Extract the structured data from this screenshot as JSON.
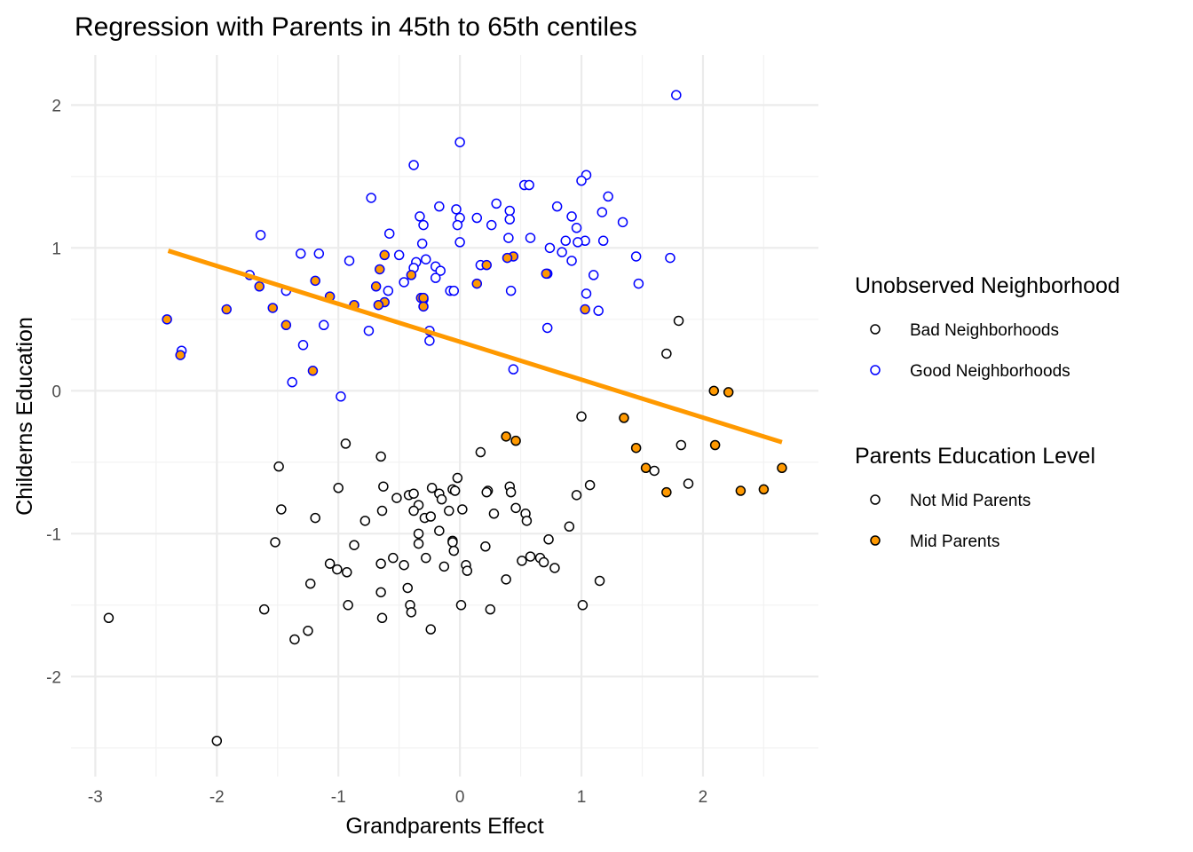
{
  "chart_data": {
    "type": "scatter",
    "title": "Regression with Parents in 45th to 65th centiles",
    "xlabel": "Grandparents Effect",
    "ylabel": "Childerns Education",
    "xlim": [
      -3.2,
      2.95
    ],
    "ylim": [
      -2.7,
      2.35
    ],
    "x_ticks": [
      -3,
      -2,
      -1,
      0,
      1,
      2
    ],
    "x_tick_labels": [
      "-3",
      "-2",
      "-1",
      "0",
      "1",
      "2"
    ],
    "y_ticks": [
      -2,
      -1,
      0,
      1,
      2
    ],
    "y_tick_labels": [
      "-2",
      "-1",
      "0",
      "1",
      "2"
    ],
    "grid": true,
    "legend_position": "right",
    "colors": {
      "bad_neighborhoods": "#000000",
      "good_neighborhoods": "#0000ff",
      "mid_parents_fill": "#ff9900",
      "not_mid_fill": "#ffffff",
      "regression_line": "#ff9900",
      "grid_major": "#ebebeb",
      "grid_minor": "#f2f2f2"
    },
    "legends": [
      {
        "title": "Unobserved Neighborhood",
        "entries": [
          {
            "label": "Bad Neighborhoods",
            "stroke": "#000000",
            "fill": "#ffffff"
          },
          {
            "label": "Good Neighborhoods",
            "stroke": "#0000ff",
            "fill": "#ffffff"
          }
        ]
      },
      {
        "title": "Parents Education Level",
        "entries": [
          {
            "label": "Not Mid Parents",
            "stroke": "#000000",
            "fill": "#ffffff"
          },
          {
            "label": "Mid Parents",
            "stroke": "#000000",
            "fill": "#ff9900"
          }
        ]
      }
    ],
    "regression_line": {
      "x": [
        -2.4,
        2.65
      ],
      "y": [
        0.98,
        -0.36
      ]
    },
    "series": [
      {
        "name": "Good Neighborhoods / Not Mid Parents",
        "neighborhood": "good",
        "mid": false,
        "points": [
          [
            1.78,
            2.07
          ],
          [
            0.0,
            1.74
          ],
          [
            -0.38,
            1.58
          ],
          [
            1.04,
            1.51
          ],
          [
            -0.73,
            1.35
          ],
          [
            1.22,
            1.36
          ],
          [
            0.3,
            1.31
          ],
          [
            0.53,
            1.44
          ],
          [
            0.57,
            1.44
          ],
          [
            1.0,
            1.47
          ],
          [
            -0.17,
            1.29
          ],
          [
            -0.03,
            1.27
          ],
          [
            0.41,
            1.26
          ],
          [
            0.8,
            1.29
          ],
          [
            1.17,
            1.25
          ],
          [
            0.92,
            1.22
          ],
          [
            0.14,
            1.21
          ],
          [
            -0.33,
            1.22
          ],
          [
            0.0,
            1.21
          ],
          [
            0.41,
            1.2
          ],
          [
            1.34,
            1.18
          ],
          [
            0.26,
            1.16
          ],
          [
            -0.02,
            1.16
          ],
          [
            0.96,
            1.14
          ],
          [
            -0.3,
            1.16
          ],
          [
            -0.58,
            1.1
          ],
          [
            -1.64,
            1.09
          ],
          [
            0.58,
            1.07
          ],
          [
            0.4,
            1.07
          ],
          [
            0.87,
            1.05
          ],
          [
            1.03,
            1.05
          ],
          [
            1.18,
            1.05
          ],
          [
            -0.31,
            1.03
          ],
          [
            0.0,
            1.04
          ],
          [
            0.97,
            1.04
          ],
          [
            0.74,
            1.0
          ],
          [
            -0.5,
            0.95
          ],
          [
            -1.31,
            0.96
          ],
          [
            -1.16,
            0.96
          ],
          [
            0.84,
            0.97
          ],
          [
            -0.36,
            0.9
          ],
          [
            -0.38,
            0.86
          ],
          [
            -0.28,
            0.92
          ],
          [
            -0.91,
            0.91
          ],
          [
            0.92,
            0.91
          ],
          [
            1.45,
            0.94
          ],
          [
            1.73,
            0.93
          ],
          [
            0.17,
            0.88
          ],
          [
            -0.2,
            0.87
          ],
          [
            -0.16,
            0.84
          ],
          [
            0.72,
            0.82
          ],
          [
            1.1,
            0.81
          ],
          [
            -1.73,
            0.81
          ],
          [
            -0.46,
            0.76
          ],
          [
            -0.2,
            0.79
          ],
          [
            -0.59,
            0.7
          ],
          [
            -0.08,
            0.7
          ],
          [
            -0.05,
            0.7
          ],
          [
            0.42,
            0.7
          ],
          [
            1.04,
            0.68
          ],
          [
            1.47,
            0.75
          ],
          [
            -1.43,
            0.7
          ],
          [
            -0.3,
            0.64
          ],
          [
            1.14,
            0.56
          ],
          [
            -1.12,
            0.46
          ],
          [
            0.72,
            0.44
          ],
          [
            -0.75,
            0.42
          ],
          [
            -0.25,
            0.42
          ],
          [
            -0.25,
            0.35
          ],
          [
            -1.29,
            0.32
          ],
          [
            -2.29,
            0.28
          ],
          [
            0.44,
            0.15
          ],
          [
            -1.38,
            0.06
          ],
          [
            -0.98,
            -0.04
          ]
        ]
      },
      {
        "name": "Good Neighborhoods / Mid Parents",
        "neighborhood": "good",
        "mid": true,
        "points": [
          [
            -0.62,
            0.95
          ],
          [
            0.44,
            0.94
          ],
          [
            0.39,
            0.93
          ],
          [
            0.22,
            0.88
          ],
          [
            -0.66,
            0.85
          ],
          [
            0.71,
            0.82
          ],
          [
            -0.4,
            0.81
          ],
          [
            -1.19,
            0.77
          ],
          [
            0.14,
            0.75
          ],
          [
            -1.65,
            0.73
          ],
          [
            -0.69,
            0.73
          ],
          [
            -1.07,
            0.66
          ],
          [
            -0.32,
            0.65
          ],
          [
            -0.3,
            0.65
          ],
          [
            -0.62,
            0.62
          ],
          [
            -0.87,
            0.6
          ],
          [
            -0.67,
            0.6
          ],
          [
            -0.3,
            0.59
          ],
          [
            -1.92,
            0.57
          ],
          [
            -1.54,
            0.58
          ],
          [
            1.03,
            0.57
          ],
          [
            -2.41,
            0.5
          ],
          [
            -1.43,
            0.46
          ],
          [
            -2.3,
            0.25
          ],
          [
            -1.21,
            0.14
          ]
        ]
      },
      {
        "name": "Bad Neighborhoods / Not Mid Parents",
        "neighborhood": "bad",
        "mid": false,
        "points": [
          [
            1.8,
            0.49
          ],
          [
            1.7,
            0.26
          ],
          [
            1.0,
            -0.18
          ],
          [
            -0.94,
            -0.37
          ],
          [
            1.82,
            -0.38
          ],
          [
            0.17,
            -0.43
          ],
          [
            -0.65,
            -0.46
          ],
          [
            -1.49,
            -0.53
          ],
          [
            1.6,
            -0.56
          ],
          [
            -0.02,
            -0.61
          ],
          [
            1.88,
            -0.65
          ],
          [
            1.07,
            -0.66
          ],
          [
            -0.63,
            -0.67
          ],
          [
            0.41,
            -0.67
          ],
          [
            -0.23,
            -0.68
          ],
          [
            -1.0,
            -0.68
          ],
          [
            -0.06,
            -0.69
          ],
          [
            -0.04,
            -0.7
          ],
          [
            0.23,
            -0.7
          ],
          [
            -0.17,
            -0.72
          ],
          [
            0.42,
            -0.71
          ],
          [
            0.22,
            -0.71
          ],
          [
            -0.42,
            -0.73
          ],
          [
            0.96,
            -0.73
          ],
          [
            -0.52,
            -0.75
          ],
          [
            -0.38,
            -0.72
          ],
          [
            -0.15,
            -0.76
          ],
          [
            -0.34,
            -0.8
          ],
          [
            -1.47,
            -0.83
          ],
          [
            0.46,
            -0.82
          ],
          [
            0.02,
            -0.83
          ],
          [
            -0.64,
            -0.84
          ],
          [
            -0.38,
            -0.84
          ],
          [
            -0.09,
            -0.84
          ],
          [
            0.54,
            -0.86
          ],
          [
            0.28,
            -0.86
          ],
          [
            -0.29,
            -0.89
          ],
          [
            -1.19,
            -0.89
          ],
          [
            -0.24,
            -0.88
          ],
          [
            -0.78,
            -0.91
          ],
          [
            0.55,
            -0.91
          ],
          [
            0.9,
            -0.95
          ],
          [
            -0.17,
            -0.98
          ],
          [
            -0.34,
            -1.0
          ],
          [
            0.73,
            -1.04
          ],
          [
            -0.06,
            -1.05
          ],
          [
            -0.06,
            -1.06
          ],
          [
            -1.52,
            -1.06
          ],
          [
            -0.34,
            -1.07
          ],
          [
            -0.87,
            -1.08
          ],
          [
            0.21,
            -1.09
          ],
          [
            -0.05,
            -1.12
          ],
          [
            0.58,
            -1.16
          ],
          [
            0.66,
            -1.17
          ],
          [
            -0.55,
            -1.17
          ],
          [
            -0.28,
            -1.17
          ],
          [
            0.51,
            -1.19
          ],
          [
            0.69,
            -1.2
          ],
          [
            -1.07,
            -1.21
          ],
          [
            -0.65,
            -1.21
          ],
          [
            -0.46,
            -1.22
          ],
          [
            0.05,
            -1.22
          ],
          [
            -0.13,
            -1.23
          ],
          [
            0.78,
            -1.24
          ],
          [
            -1.01,
            -1.25
          ],
          [
            -0.93,
            -1.27
          ],
          [
            0.06,
            -1.26
          ],
          [
            0.38,
            -1.32
          ],
          [
            1.15,
            -1.33
          ],
          [
            -1.23,
            -1.35
          ],
          [
            -0.43,
            -1.38
          ],
          [
            -0.65,
            -1.41
          ],
          [
            -0.92,
            -1.5
          ],
          [
            0.01,
            -1.5
          ],
          [
            1.01,
            -1.5
          ],
          [
            -0.41,
            -1.5
          ],
          [
            -0.4,
            -1.55
          ],
          [
            0.25,
            -1.53
          ],
          [
            -1.61,
            -1.53
          ],
          [
            -2.89,
            -1.59
          ],
          [
            -0.64,
            -1.59
          ],
          [
            -0.24,
            -1.67
          ],
          [
            -1.25,
            -1.68
          ],
          [
            -1.36,
            -1.74
          ],
          [
            -2.0,
            -2.45
          ]
        ]
      },
      {
        "name": "Bad Neighborhoods / Mid Parents",
        "neighborhood": "bad",
        "mid": true,
        "points": [
          [
            2.09,
            0.0
          ],
          [
            2.21,
            -0.01
          ],
          [
            1.35,
            -0.19
          ],
          [
            0.38,
            -0.32
          ],
          [
            0.46,
            -0.35
          ],
          [
            2.1,
            -0.38
          ],
          [
            1.45,
            -0.4
          ],
          [
            2.65,
            -0.54
          ],
          [
            1.53,
            -0.54
          ],
          [
            2.5,
            -0.69
          ],
          [
            2.31,
            -0.7
          ],
          [
            1.7,
            -0.71
          ]
        ]
      }
    ]
  }
}
